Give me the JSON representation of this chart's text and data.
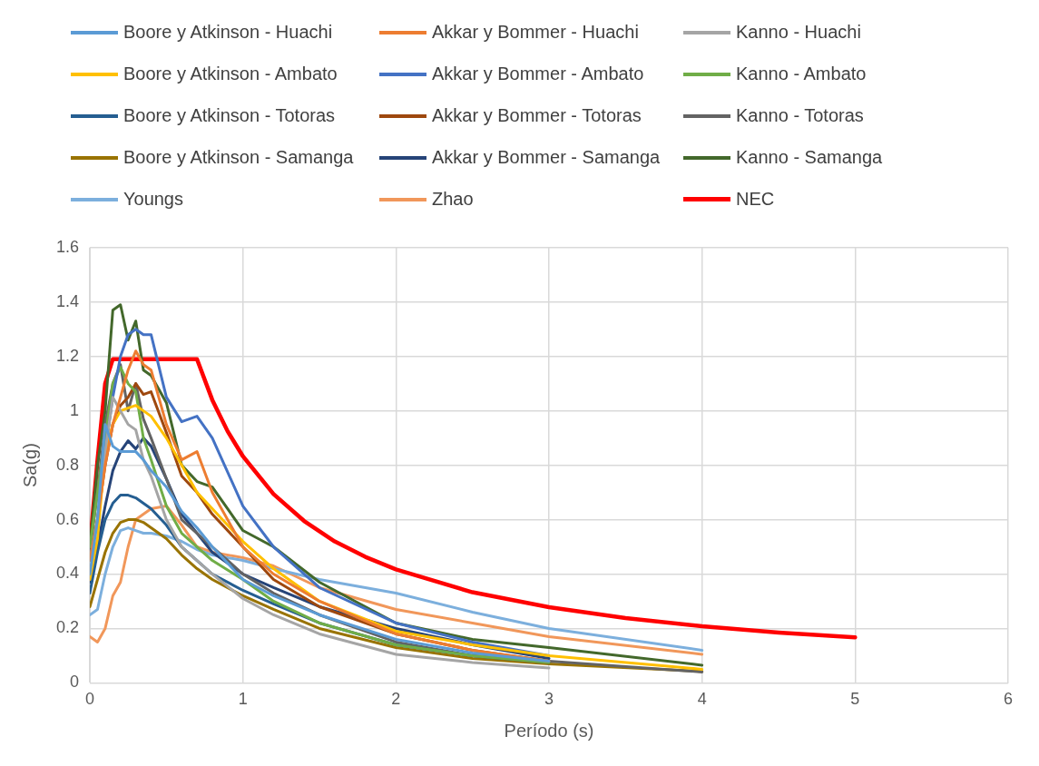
{
  "chart_data": {
    "type": "line",
    "xlabel": "Período (s)",
    "ylabel": "Sa(g)",
    "x": [
      0,
      0.05,
      0.1,
      0.15,
      0.2,
      0.25,
      0.3,
      0.35,
      0.4,
      0.5,
      0.6,
      0.7,
      0.8,
      1,
      1.2,
      1.5,
      2,
      2.5,
      3,
      4
    ],
    "xlim": [
      0,
      6
    ],
    "xticks": [
      0,
      1,
      2,
      3,
      4,
      5,
      6
    ],
    "ylim": [
      0,
      1.6
    ],
    "yticks": [
      0,
      0.2,
      0.4,
      0.6,
      0.8,
      1,
      1.2,
      1.4,
      1.6
    ],
    "grid": true,
    "legend": "top",
    "marker": "none",
    "line_style": "solid",
    "series": [
      {
        "name": "Boore y Atkinson - Huachi",
        "color": "#5b9bd5",
        "values": [
          0.4,
          0.6,
          0.95,
          0.87,
          0.85,
          0.85,
          0.85,
          0.82,
          0.78,
          0.72,
          0.63,
          0.57,
          0.5,
          0.38,
          0.32,
          0.25,
          0.16,
          0.11,
          0.08,
          null
        ]
      },
      {
        "name": "Akkar y Bommer - Huachi",
        "color": "#ed7d31",
        "values": [
          0.45,
          0.6,
          0.8,
          0.95,
          1.05,
          1.15,
          1.22,
          1.17,
          1.15,
          0.95,
          0.82,
          0.85,
          0.7,
          0.5,
          0.4,
          0.3,
          0.18,
          0.12,
          0.08,
          null
        ]
      },
      {
        "name": "Kanno - Huachi",
        "color": "#a5a5a5",
        "values": [
          0.45,
          0.6,
          0.85,
          1.05,
          1,
          0.95,
          0.93,
          0.82,
          0.76,
          0.6,
          0.5,
          0.45,
          0.4,
          0.31,
          0.25,
          0.18,
          0.105,
          0.075,
          0.055,
          null
        ]
      },
      {
        "name": "Boore y Atkinson - Ambato",
        "color": "#ffc000",
        "values": [
          0.38,
          0.53,
          0.85,
          0.95,
          1,
          1.01,
          1.02,
          1,
          0.98,
          0.9,
          0.8,
          0.7,
          0.64,
          0.52,
          0.42,
          0.3,
          0.19,
          0.14,
          0.1,
          0.05
        ]
      },
      {
        "name": "Akkar y Bommer - Ambato",
        "color": "#4472c4",
        "values": [
          0.45,
          0.6,
          0.85,
          1.05,
          1.2,
          1.28,
          1.3,
          1.28,
          1.28,
          1.05,
          0.96,
          0.98,
          0.9,
          0.65,
          0.5,
          0.35,
          0.22,
          0.15,
          0.1,
          null
        ]
      },
      {
        "name": "Kanno - Ambato",
        "color": "#70ad47",
        "values": [
          0.5,
          0.7,
          0.9,
          1.1,
          1.16,
          1.1,
          1.07,
          0.9,
          0.82,
          0.65,
          0.55,
          0.5,
          0.45,
          0.38,
          0.3,
          0.22,
          0.14,
          0.1,
          0.075,
          null
        ]
      },
      {
        "name": "Boore y Atkinson - Totoras",
        "color": "#255e91",
        "values": [
          0.33,
          0.48,
          0.6,
          0.66,
          0.69,
          0.69,
          0.68,
          0.66,
          0.64,
          0.58,
          0.5,
          0.45,
          0.4,
          0.34,
          0.29,
          0.22,
          0.14,
          0.1,
          0.075,
          null
        ]
      },
      {
        "name": "Akkar y Bommer - Totoras",
        "color": "#9e480e",
        "values": [
          0.45,
          0.6,
          0.8,
          0.95,
          1.02,
          1.05,
          1.1,
          1.06,
          1.07,
          0.92,
          0.76,
          0.7,
          0.62,
          0.5,
          0.38,
          0.28,
          0.18,
          0.12,
          0.08,
          null
        ]
      },
      {
        "name": "Kanno - Totoras",
        "color": "#636363",
        "values": [
          0.48,
          0.7,
          0.95,
          1.1,
          1.17,
          1,
          1.1,
          0.97,
          0.9,
          0.75,
          0.6,
          0.55,
          0.5,
          0.4,
          0.33,
          0.25,
          0.15,
          0.1,
          0.08,
          0.04
        ]
      },
      {
        "name": "Boore y Atkinson - Samanga",
        "color": "#997300",
        "values": [
          0.28,
          0.38,
          0.48,
          0.55,
          0.59,
          0.6,
          0.6,
          0.59,
          0.57,
          0.53,
          0.47,
          0.42,
          0.38,
          0.32,
          0.27,
          0.2,
          0.13,
          0.09,
          0.07,
          0.042
        ]
      },
      {
        "name": "Akkar y Bommer - Samanga",
        "color": "#264478",
        "values": [
          0.37,
          0.5,
          0.65,
          0.78,
          0.85,
          0.89,
          0.86,
          0.9,
          0.87,
          0.75,
          0.62,
          0.55,
          0.48,
          0.4,
          0.35,
          0.28,
          0.2,
          0.14,
          0.09,
          null
        ]
      },
      {
        "name": "Kanno - Samanga",
        "color": "#43682b",
        "values": [
          0.5,
          0.8,
          1,
          1.37,
          1.39,
          1.26,
          1.33,
          1.15,
          1.13,
          1.03,
          0.8,
          0.74,
          0.72,
          0.56,
          0.5,
          0.37,
          0.22,
          0.16,
          0.13,
          0.065
        ]
      },
      {
        "name": "Youngs",
        "color": "#7cafdd",
        "values": [
          0.25,
          0.27,
          0.4,
          0.5,
          0.56,
          0.57,
          0.56,
          0.55,
          0.55,
          0.54,
          0.52,
          0.49,
          0.47,
          0.45,
          0.42,
          0.38,
          0.33,
          0.26,
          0.2,
          0.12
        ]
      },
      {
        "name": "Zhao",
        "color": "#f1975a",
        "values": [
          0.17,
          0.15,
          0.2,
          0.32,
          0.37,
          0.5,
          0.6,
          0.62,
          0.64,
          0.65,
          0.58,
          0.5,
          0.48,
          0.46,
          0.43,
          0.35,
          0.27,
          0.22,
          0.17,
          0.105
        ]
      },
      {
        "name": "NEC",
        "color": "#ff0000",
        "x": [
          0,
          0.05,
          0.1,
          0.15,
          0.7,
          0.8,
          0.9,
          1,
          1.2,
          1.4,
          1.6,
          1.8,
          2,
          2.5,
          3,
          3.5,
          4,
          4.5,
          5
        ],
        "values": [
          0.5,
          0.82,
          1.1,
          1.19,
          1.19,
          1.04,
          0.925,
          0.833,
          0.694,
          0.595,
          0.52,
          0.463,
          0.417,
          0.333,
          0.278,
          0.238,
          0.208,
          0.185,
          0.167
        ]
      }
    ]
  }
}
